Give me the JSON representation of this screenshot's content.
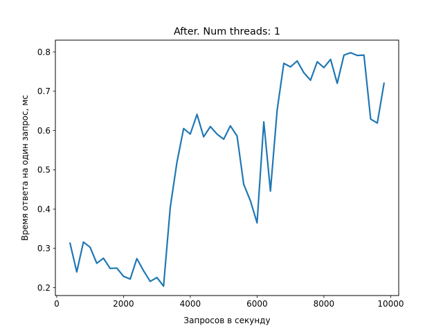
{
  "chart_data": {
    "type": "line",
    "title": "After. Num threads: 1",
    "xlabel": "Запросов в секунду",
    "ylabel": "Время ответа на один запрос, мс",
    "xlim": [
      -40,
      10240
    ],
    "ylim": [
      0.18,
      0.83
    ],
    "xticks": [
      0,
      2000,
      4000,
      6000,
      8000,
      10000
    ],
    "yticks": [
      0.2,
      0.3,
      0.4,
      0.5,
      0.6,
      0.7,
      0.8
    ],
    "grid": false,
    "line_color": "#1f77b4",
    "series": [
      {
        "x": [
          400,
          600,
          800,
          1000,
          1200,
          1400,
          1600,
          1800,
          2000,
          2200,
          2400,
          2600,
          2800,
          3000,
          3200,
          3400,
          3600,
          3800,
          4000,
          4200,
          4400,
          4600,
          4800,
          5000,
          5200,
          5400,
          5600,
          5800,
          6000,
          6200,
          6400,
          6600,
          6800,
          7000,
          7200,
          7400,
          7600,
          7800,
          8000,
          8200,
          8400,
          8600,
          8800,
          9000,
          9200,
          9400,
          9600,
          9800
        ],
        "values": [
          0.313,
          0.24,
          0.316,
          0.303,
          0.262,
          0.275,
          0.249,
          0.25,
          0.229,
          0.222,
          0.274,
          0.243,
          0.216,
          0.226,
          0.204,
          0.405,
          0.519,
          0.605,
          0.591,
          0.641,
          0.584,
          0.61,
          0.591,
          0.578,
          0.612,
          0.586,
          0.463,
          0.421,
          0.365,
          0.622,
          0.446,
          0.652,
          0.771,
          0.762,
          0.777,
          0.747,
          0.728,
          0.775,
          0.76,
          0.781,
          0.72,
          0.792,
          0.798,
          0.791,
          0.792,
          0.629,
          0.619,
          0.72
        ]
      }
    ]
  }
}
